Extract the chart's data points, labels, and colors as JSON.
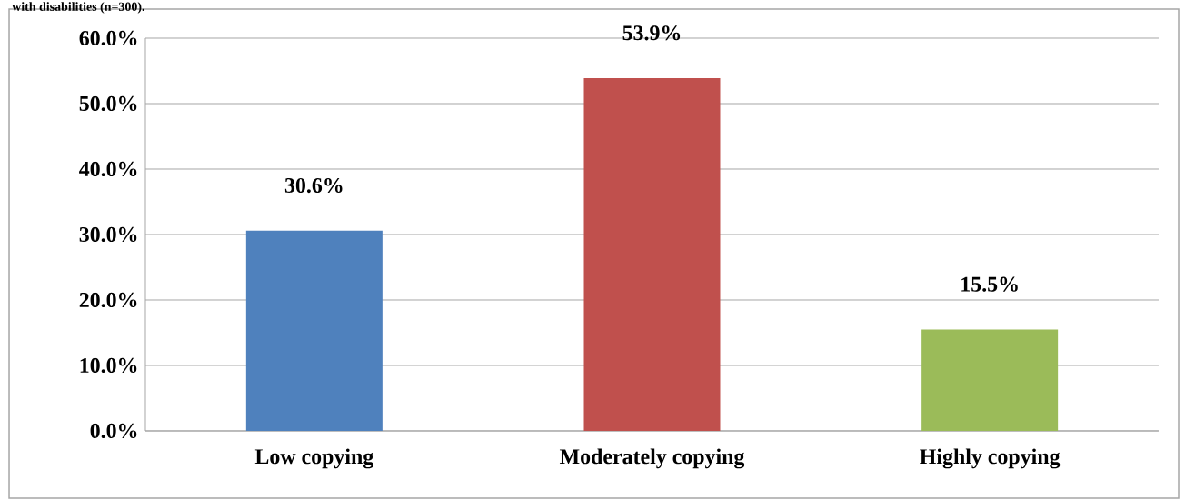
{
  "chart_data": {
    "type": "bar",
    "title": "with disabilities (n=300).",
    "categories": [
      "Low copying",
      "Moderately copying",
      "Highly copying"
    ],
    "values": [
      30.6,
      53.9,
      15.5
    ],
    "colors": [
      "#4f81bd",
      "#c0504d",
      "#9bbb59"
    ],
    "value_labels": [
      "30.6%",
      "53.9%",
      "15.5%"
    ],
    "ylim": [
      0,
      60
    ],
    "yticks": [
      {
        "value": 0,
        "label": "0.0%"
      },
      {
        "value": 10,
        "label": "10.0%"
      },
      {
        "value": 20,
        "label": "20.0%"
      },
      {
        "value": 30,
        "label": "30.0%"
      },
      {
        "value": 40,
        "label": "40.0%"
      },
      {
        "value": 50,
        "label": "50.0%"
      },
      {
        "value": 60,
        "label": "60.0%"
      }
    ],
    "grid": "y"
  }
}
